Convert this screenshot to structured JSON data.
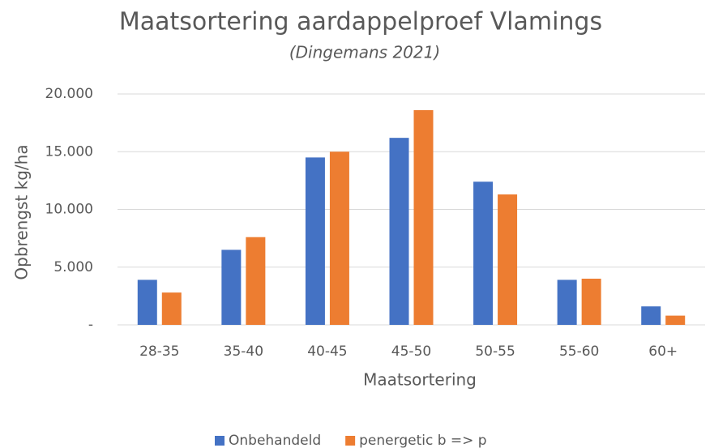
{
  "chart_data": {
    "type": "bar",
    "title": "Maatsortering aardappelproef Vlamings",
    "subtitle": "(Dingemans 2021)",
    "x_label": "Maatsortering",
    "y_label": "Opbrengst kg/ha",
    "categories": [
      "28-35",
      "35-40",
      "40-45",
      "45-50",
      "50-55",
      "55-60",
      "60+"
    ],
    "series": [
      {
        "name": "Onbehandeld",
        "color": "#4472c4",
        "values": [
          3900,
          6500,
          14500,
          16200,
          12400,
          3900,
          1600
        ]
      },
      {
        "name": "penergetic b => p",
        "color": "#ed7d31",
        "values": [
          2800,
          7600,
          15000,
          18600,
          11300,
          4000,
          800
        ]
      }
    ],
    "ylim": [
      0,
      20000
    ],
    "yticks": [
      {
        "value": 0,
        "label": "-"
      },
      {
        "value": 5000,
        "label": "5.000"
      },
      {
        "value": 10000,
        "label": "10.000"
      },
      {
        "value": 15000,
        "label": "15.000"
      },
      {
        "value": 20000,
        "label": "20.000"
      }
    ],
    "grid": true,
    "legend": "bottom"
  }
}
